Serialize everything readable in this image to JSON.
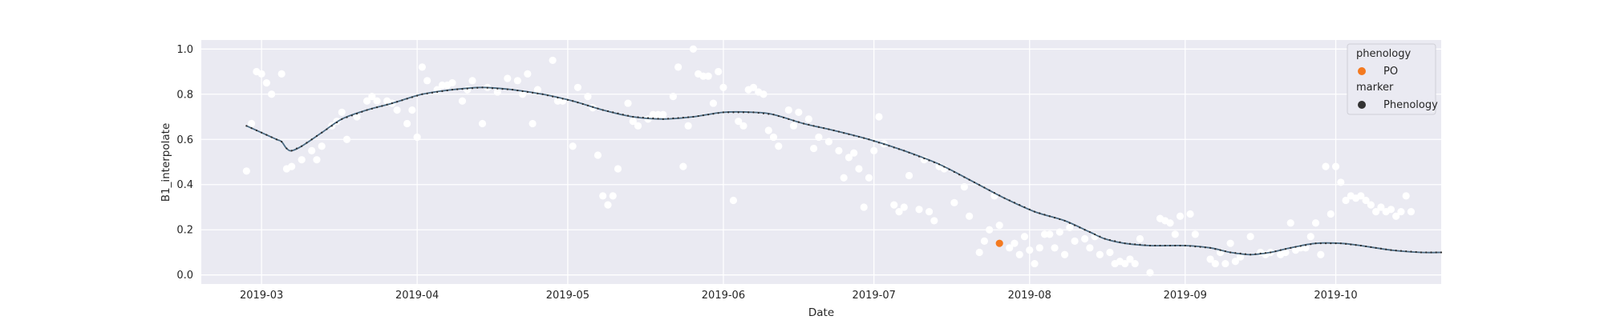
{
  "chart_data": {
    "type": "scatter",
    "title": "",
    "xlabel": "Date",
    "ylabel": "B1_interpolate",
    "xlim": [
      "2019-02-17",
      "2019-10-22"
    ],
    "ylim": [
      -0.04,
      1.04
    ],
    "grid": true,
    "x_ticks": [
      "2019-03-01",
      "2019-04-01",
      "2019-05-01",
      "2019-06-01",
      "2019-07-01",
      "2019-08-01",
      "2019-09-01",
      "2019-10-01"
    ],
    "x_tick_labels": [
      "2019-03",
      "2019-04",
      "2019-05",
      "2019-06",
      "2019-07",
      "2019-08",
      "2019-09",
      "2019-10"
    ],
    "y_ticks": [
      0.0,
      0.2,
      0.4,
      0.6,
      0.8,
      1.0
    ],
    "y_tick_labels": [
      "0.0",
      "0.2",
      "0.4",
      "0.6",
      "0.8",
      "1.0"
    ],
    "legend": {
      "placement": "top-right",
      "sections": [
        {
          "title": "phenology",
          "entries": [
            {
              "label": "PO",
              "color": "#f47a20"
            }
          ]
        },
        {
          "title": "marker",
          "entries": [
            {
              "label": "Phenology",
              "color": "#333333"
            }
          ]
        }
      ]
    },
    "colors": {
      "background": "#eaeaf2",
      "grid": "#ffffff",
      "raw_points": "#ffffff",
      "curve": "#4b6b83",
      "curve_dots": "#2b2b2b",
      "phenology_point": "#f47a20"
    },
    "series": [
      {
        "kind": "raw_observations",
        "color": "#ffffff",
        "points": [
          [
            "2019-02-26",
            0.46
          ],
          [
            "2019-02-27",
            0.67
          ],
          [
            "2019-02-28",
            0.9
          ],
          [
            "2019-03-01",
            0.89
          ],
          [
            "2019-03-02",
            0.85
          ],
          [
            "2019-03-03",
            0.8
          ],
          [
            "2019-03-05",
            0.89
          ],
          [
            "2019-03-06",
            0.47
          ],
          [
            "2019-03-07",
            0.48
          ],
          [
            "2019-03-09",
            0.51
          ],
          [
            "2019-03-11",
            0.55
          ],
          [
            "2019-03-12",
            0.51
          ],
          [
            "2019-03-13",
            0.57
          ],
          [
            "2019-03-15",
            0.66
          ],
          [
            "2019-03-16",
            0.68
          ],
          [
            "2019-03-17",
            0.72
          ],
          [
            "2019-03-18",
            0.6
          ],
          [
            "2019-03-20",
            0.7
          ],
          [
            "2019-03-22",
            0.77
          ],
          [
            "2019-03-23",
            0.79
          ],
          [
            "2019-03-24",
            0.77
          ],
          [
            "2019-03-26",
            0.77
          ],
          [
            "2019-03-27",
            0.76
          ],
          [
            "2019-03-28",
            0.73
          ],
          [
            "2019-03-30",
            0.67
          ],
          [
            "2019-03-31",
            0.73
          ],
          [
            "2019-04-01",
            0.61
          ],
          [
            "2019-04-02",
            0.92
          ],
          [
            "2019-04-03",
            0.86
          ],
          [
            "2019-04-05",
            0.82
          ],
          [
            "2019-04-06",
            0.84
          ],
          [
            "2019-04-07",
            0.84
          ],
          [
            "2019-04-08",
            0.85
          ],
          [
            "2019-04-10",
            0.77
          ],
          [
            "2019-04-11",
            0.82
          ],
          [
            "2019-04-12",
            0.86
          ],
          [
            "2019-04-14",
            0.67
          ],
          [
            "2019-04-15",
            0.83
          ],
          [
            "2019-04-17",
            0.81
          ],
          [
            "2019-04-19",
            0.87
          ],
          [
            "2019-04-21",
            0.86
          ],
          [
            "2019-04-22",
            0.8
          ],
          [
            "2019-04-23",
            0.89
          ],
          [
            "2019-04-24",
            0.67
          ],
          [
            "2019-04-25",
            0.82
          ],
          [
            "2019-04-28",
            0.95
          ],
          [
            "2019-04-29",
            0.77
          ],
          [
            "2019-04-30",
            0.77
          ],
          [
            "2019-05-02",
            0.57
          ],
          [
            "2019-05-03",
            0.83
          ],
          [
            "2019-05-05",
            0.79
          ],
          [
            "2019-05-06",
            0.74
          ],
          [
            "2019-05-07",
            0.53
          ],
          [
            "2019-05-08",
            0.35
          ],
          [
            "2019-05-09",
            0.31
          ],
          [
            "2019-05-10",
            0.35
          ],
          [
            "2019-05-11",
            0.47
          ],
          [
            "2019-05-13",
            0.76
          ],
          [
            "2019-05-14",
            0.68
          ],
          [
            "2019-05-15",
            0.66
          ],
          [
            "2019-05-17",
            0.69
          ],
          [
            "2019-05-18",
            0.71
          ],
          [
            "2019-05-19",
            0.71
          ],
          [
            "2019-05-20",
            0.71
          ],
          [
            "2019-05-22",
            0.79
          ],
          [
            "2019-05-23",
            0.92
          ],
          [
            "2019-05-24",
            0.48
          ],
          [
            "2019-05-25",
            0.66
          ],
          [
            "2019-05-26",
            1.0
          ],
          [
            "2019-05-27",
            0.89
          ],
          [
            "2019-05-28",
            0.88
          ],
          [
            "2019-05-29",
            0.88
          ],
          [
            "2019-05-30",
            0.76
          ],
          [
            "2019-05-31",
            0.9
          ],
          [
            "2019-06-01",
            0.83
          ],
          [
            "2019-06-03",
            0.33
          ],
          [
            "2019-06-04",
            0.68
          ],
          [
            "2019-06-05",
            0.66
          ],
          [
            "2019-06-06",
            0.82
          ],
          [
            "2019-06-07",
            0.83
          ],
          [
            "2019-06-08",
            0.81
          ],
          [
            "2019-06-09",
            0.8
          ],
          [
            "2019-06-10",
            0.64
          ],
          [
            "2019-06-11",
            0.61
          ],
          [
            "2019-06-12",
            0.57
          ],
          [
            "2019-06-14",
            0.73
          ],
          [
            "2019-06-15",
            0.66
          ],
          [
            "2019-06-16",
            0.72
          ],
          [
            "2019-06-18",
            0.69
          ],
          [
            "2019-06-19",
            0.56
          ],
          [
            "2019-06-20",
            0.61
          ],
          [
            "2019-06-22",
            0.59
          ],
          [
            "2019-06-24",
            0.55
          ],
          [
            "2019-06-25",
            0.43
          ],
          [
            "2019-06-26",
            0.52
          ],
          [
            "2019-06-27",
            0.54
          ],
          [
            "2019-06-28",
            0.47
          ],
          [
            "2019-06-29",
            0.3
          ],
          [
            "2019-06-30",
            0.43
          ],
          [
            "2019-07-01",
            0.55
          ],
          [
            "2019-07-02",
            0.7
          ],
          [
            "2019-07-03",
            0.58
          ],
          [
            "2019-07-05",
            0.31
          ],
          [
            "2019-07-06",
            0.28
          ],
          [
            "2019-07-07",
            0.3
          ],
          [
            "2019-07-08",
            0.44
          ],
          [
            "2019-07-10",
            0.29
          ],
          [
            "2019-07-11",
            0.51
          ],
          [
            "2019-07-12",
            0.28
          ],
          [
            "2019-07-13",
            0.24
          ],
          [
            "2019-07-14",
            0.48
          ],
          [
            "2019-07-15",
            0.47
          ],
          [
            "2019-07-17",
            0.32
          ],
          [
            "2019-07-19",
            0.39
          ],
          [
            "2019-07-20",
            0.26
          ],
          [
            "2019-07-22",
            0.1
          ],
          [
            "2019-07-23",
            0.15
          ],
          [
            "2019-07-24",
            0.2
          ],
          [
            "2019-07-25",
            0.35
          ],
          [
            "2019-07-26",
            0.22
          ],
          [
            "2019-07-28",
            0.12
          ],
          [
            "2019-07-29",
            0.14
          ],
          [
            "2019-07-30",
            0.09
          ],
          [
            "2019-07-31",
            0.17
          ],
          [
            "2019-08-01",
            0.11
          ],
          [
            "2019-08-02",
            0.05
          ],
          [
            "2019-08-03",
            0.12
          ],
          [
            "2019-08-04",
            0.18
          ],
          [
            "2019-08-05",
            0.18
          ],
          [
            "2019-08-06",
            0.12
          ],
          [
            "2019-08-07",
            0.19
          ],
          [
            "2019-08-08",
            0.09
          ],
          [
            "2019-08-09",
            0.21
          ],
          [
            "2019-08-10",
            0.15
          ],
          [
            "2019-08-12",
            0.16
          ],
          [
            "2019-08-13",
            0.12
          ],
          [
            "2019-08-14",
            0.17
          ],
          [
            "2019-08-15",
            0.09
          ],
          [
            "2019-08-17",
            0.1
          ],
          [
            "2019-08-18",
            0.05
          ],
          [
            "2019-08-19",
            0.06
          ],
          [
            "2019-08-20",
            0.05
          ],
          [
            "2019-08-21",
            0.07
          ],
          [
            "2019-08-22",
            0.05
          ],
          [
            "2019-08-23",
            0.16
          ],
          [
            "2019-08-25",
            0.01
          ],
          [
            "2019-08-27",
            0.25
          ],
          [
            "2019-08-28",
            0.24
          ],
          [
            "2019-08-29",
            0.23
          ],
          [
            "2019-08-30",
            0.18
          ],
          [
            "2019-08-31",
            0.26
          ],
          [
            "2019-09-02",
            0.27
          ],
          [
            "2019-09-03",
            0.18
          ],
          [
            "2019-09-06",
            0.07
          ],
          [
            "2019-09-07",
            0.05
          ],
          [
            "2019-09-08",
            0.1
          ],
          [
            "2019-09-09",
            0.05
          ],
          [
            "2019-09-10",
            0.14
          ],
          [
            "2019-09-11",
            0.06
          ],
          [
            "2019-09-12",
            0.08
          ],
          [
            "2019-09-14",
            0.17
          ],
          [
            "2019-09-16",
            0.1
          ],
          [
            "2019-09-17",
            0.09
          ],
          [
            "2019-09-18",
            0.1
          ],
          [
            "2019-09-20",
            0.09
          ],
          [
            "2019-09-21",
            0.1
          ],
          [
            "2019-09-22",
            0.23
          ],
          [
            "2019-09-23",
            0.11
          ],
          [
            "2019-09-24",
            0.12
          ],
          [
            "2019-09-25",
            0.12
          ],
          [
            "2019-09-26",
            0.17
          ],
          [
            "2019-09-27",
            0.23
          ],
          [
            "2019-09-28",
            0.09
          ],
          [
            "2019-09-29",
            0.48
          ],
          [
            "2019-09-30",
            0.27
          ],
          [
            "2019-10-01",
            0.48
          ],
          [
            "2019-10-02",
            0.41
          ],
          [
            "2019-10-03",
            0.33
          ],
          [
            "2019-10-04",
            0.35
          ],
          [
            "2019-10-05",
            0.34
          ],
          [
            "2019-10-06",
            0.35
          ],
          [
            "2019-10-07",
            0.33
          ],
          [
            "2019-10-08",
            0.31
          ],
          [
            "2019-10-09",
            0.28
          ],
          [
            "2019-10-10",
            0.3
          ],
          [
            "2019-10-11",
            0.28
          ],
          [
            "2019-10-12",
            0.29
          ],
          [
            "2019-10-13",
            0.26
          ],
          [
            "2019-10-14",
            0.28
          ],
          [
            "2019-10-15",
            0.35
          ],
          [
            "2019-10-16",
            0.28
          ]
        ]
      },
      {
        "kind": "interpolated_curve",
        "color": "#4b6b83",
        "points": [
          [
            "2019-02-26",
            0.66
          ],
          [
            "2019-03-01",
            0.63
          ],
          [
            "2019-03-04",
            0.6
          ],
          [
            "2019-03-05",
            0.59
          ],
          [
            "2019-03-06",
            0.56
          ],
          [
            "2019-03-07",
            0.55
          ],
          [
            "2019-03-09",
            0.57
          ],
          [
            "2019-03-13",
            0.63
          ],
          [
            "2019-03-17",
            0.69
          ],
          [
            "2019-03-22",
            0.73
          ],
          [
            "2019-03-27",
            0.76
          ],
          [
            "2019-04-02",
            0.8
          ],
          [
            "2019-04-08",
            0.82
          ],
          [
            "2019-04-14",
            0.83
          ],
          [
            "2019-04-20",
            0.82
          ],
          [
            "2019-04-26",
            0.8
          ],
          [
            "2019-05-02",
            0.77
          ],
          [
            "2019-05-08",
            0.73
          ],
          [
            "2019-05-14",
            0.7
          ],
          [
            "2019-05-20",
            0.69
          ],
          [
            "2019-05-26",
            0.7
          ],
          [
            "2019-06-01",
            0.72
          ],
          [
            "2019-06-07",
            0.72
          ],
          [
            "2019-06-11",
            0.71
          ],
          [
            "2019-06-17",
            0.67
          ],
          [
            "2019-06-23",
            0.64
          ],
          [
            "2019-06-30",
            0.6
          ],
          [
            "2019-07-07",
            0.55
          ],
          [
            "2019-07-14",
            0.49
          ],
          [
            "2019-07-21",
            0.41
          ],
          [
            "2019-07-27",
            0.34
          ],
          [
            "2019-08-02",
            0.28
          ],
          [
            "2019-08-08",
            0.24
          ],
          [
            "2019-08-13",
            0.19
          ],
          [
            "2019-08-16",
            0.16
          ],
          [
            "2019-08-20",
            0.14
          ],
          [
            "2019-08-25",
            0.13
          ],
          [
            "2019-09-01",
            0.13
          ],
          [
            "2019-09-06",
            0.12
          ],
          [
            "2019-09-10",
            0.1
          ],
          [
            "2019-09-14",
            0.09
          ],
          [
            "2019-09-18",
            0.1
          ],
          [
            "2019-09-22",
            0.12
          ],
          [
            "2019-09-27",
            0.14
          ],
          [
            "2019-10-02",
            0.14
          ],
          [
            "2019-10-06",
            0.13
          ],
          [
            "2019-10-12",
            0.11
          ],
          [
            "2019-10-18",
            0.1
          ],
          [
            "2019-10-22",
            0.1
          ]
        ]
      },
      {
        "kind": "phenology",
        "name": "PO",
        "color": "#f47a20",
        "points": [
          [
            "2019-07-26",
            0.14
          ]
        ]
      }
    ]
  }
}
